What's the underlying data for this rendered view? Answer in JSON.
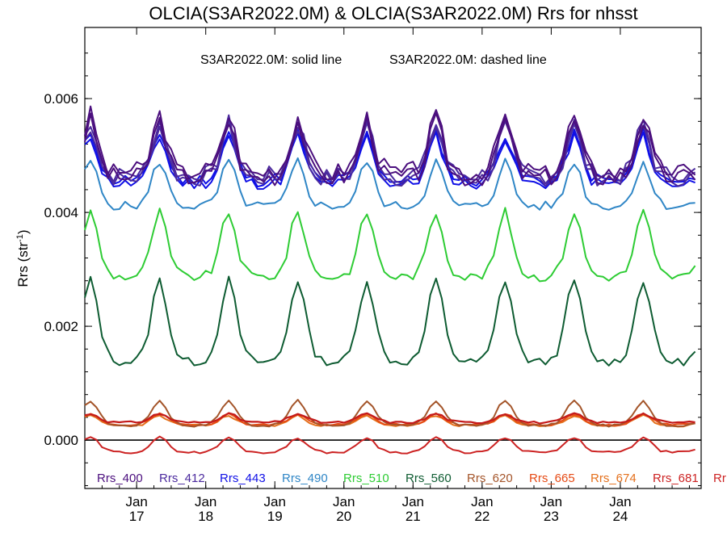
{
  "chart_data": {
    "type": "line",
    "title": "OLCIA(S3AR2022.0M) & OLCIA(S3AR2022.0M)  Rrs for nhsst",
    "annotation": {
      "solid": "S3AR2022.0M: solid line",
      "dashed": "S3AR2022.0M: dashed line"
    },
    "ylabel": "Rrs (str",
    "ylabel_sup": "-1",
    "ylabel_close": ")",
    "ylim": [
      -0.00085,
      0.00725
    ],
    "yticks": [
      {
        "value": 0.0,
        "label": "0.000"
      },
      {
        "value": 0.002,
        "label": "0.002"
      },
      {
        "value": 0.004,
        "label": "0.004"
      },
      {
        "value": 0.006,
        "label": "0.006"
      }
    ],
    "xlim": [
      2016.0,
      2024.92
    ],
    "xticks": [
      {
        "value": 2016.75,
        "top": "Jan",
        "bottom": "17"
      },
      {
        "value": 2017.75,
        "top": "Jan",
        "bottom": "18"
      },
      {
        "value": 2018.75,
        "top": "Jan",
        "bottom": "19"
      },
      {
        "value": 2019.75,
        "top": "Jan",
        "bottom": "20"
      },
      {
        "value": 2020.75,
        "top": "Jan",
        "bottom": "21"
      },
      {
        "value": 2021.75,
        "top": "Jan",
        "bottom": "22"
      },
      {
        "value": 2022.75,
        "top": "Jan",
        "bottom": "23"
      },
      {
        "value": 2023.75,
        "top": "Jan",
        "bottom": "24"
      }
    ],
    "zero_line": 0,
    "grid": false,
    "legend_position": "bottom",
    "series": [
      {
        "name": "Rrs_400",
        "color": "#4b0f7e",
        "base": 0.00495,
        "amp": 0.00062,
        "sharp": 2.6,
        "noise": 0.00016,
        "seed": 3,
        "dashed_offset": 9e-05
      },
      {
        "name": "Rrs_412",
        "color": "#4b2a9e",
        "base": 0.0049,
        "amp": 0.00058,
        "sharp": 2.6,
        "noise": 0.00013,
        "seed": 7,
        "dashed_offset": 7e-05
      },
      {
        "name": "Rrs_443",
        "color": "#1010e6",
        "base": 0.00478,
        "amp": 0.00052,
        "sharp": 2.4,
        "noise": 0.0001,
        "seed": 11,
        "dashed_offset": 6e-05
      },
      {
        "name": "Rrs_490",
        "color": "#2f86c6",
        "base": 0.00438,
        "amp": 0.0005,
        "sharp": 2.4,
        "noise": 8e-05,
        "seed": 5
      },
      {
        "name": "Rrs_510",
        "color": "#2ecc34",
        "base": 0.00325,
        "amp": 0.00072,
        "sharp": 2.2,
        "noise": 8e-05,
        "seed": 9
      },
      {
        "name": "Rrs_560",
        "color": "#0e5c32",
        "base": 0.00185,
        "amp": 0.00092,
        "sharp": 2.0,
        "noise": 7e-05,
        "seed": 13
      },
      {
        "name": "Rrs_620",
        "color": "#a4552a",
        "base": 0.0004,
        "amp": 0.00028,
        "sharp": 2.0,
        "noise": 2e-05,
        "seed": 17
      },
      {
        "name": "Rrs_665",
        "color": "#e64a14",
        "base": 0.00033,
        "amp": 0.00012,
        "sharp": 1.8,
        "noise": 2e-05,
        "seed": 19
      },
      {
        "name": "Rrs_674",
        "color": "#e4701c",
        "base": 0.00031,
        "amp": 0.00011,
        "sharp": 1.8,
        "noise": 2e-05,
        "seed": 23
      },
      {
        "name": "Rrs_681",
        "color": "#cc2222",
        "base": -0.00013,
        "amp": 0.00017,
        "sharp": 1.8,
        "noise": 2e-05,
        "seed": 29
      },
      {
        "name": "Rr",
        "color": "#cc2222"
      }
    ],
    "dark_red_extra": {
      "color": "#c41a1a",
      "base": 0.00036,
      "amp": 0.0001,
      "sharp": 1.8,
      "noise": 2e-05,
      "seed": 31
    }
  }
}
